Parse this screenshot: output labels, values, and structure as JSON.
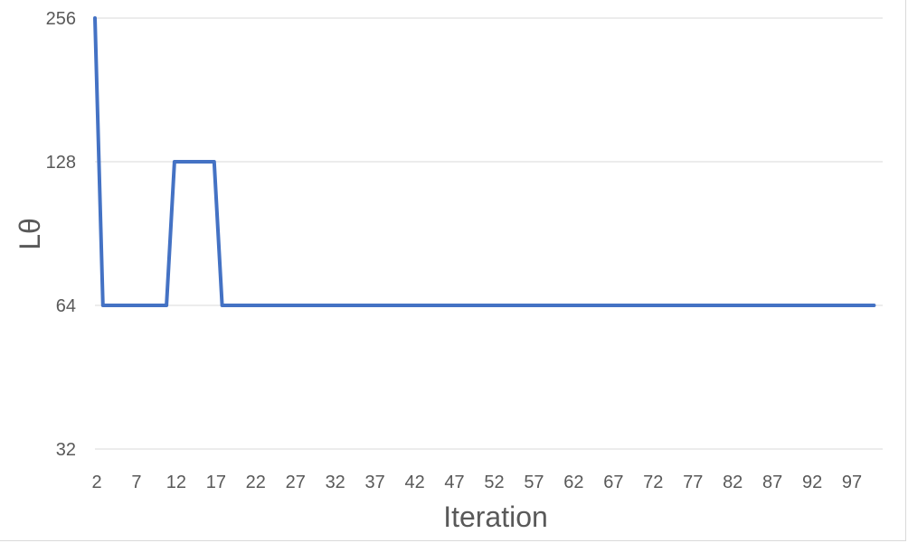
{
  "chart_data": {
    "type": "line",
    "title": "",
    "xlabel": "Iteration",
    "ylabel": "Lθ",
    "yscale": "log2",
    "ylim": [
      32,
      256
    ],
    "yticks": [
      32,
      64,
      128,
      256
    ],
    "xticks": [
      2,
      7,
      12,
      17,
      22,
      27,
      32,
      37,
      42,
      47,
      52,
      57,
      62,
      67,
      72,
      77,
      82,
      87,
      92,
      97
    ],
    "xlim": [
      2,
      100
    ],
    "grid": true,
    "legend": "none",
    "colors": {
      "series": "#4472c4",
      "grid": "#d9d9d9",
      "text": "#595959"
    },
    "series": [
      {
        "x": [
          2,
          3,
          4,
          5,
          6,
          7,
          8,
          9,
          10,
          11,
          12,
          13,
          14,
          15,
          16,
          17,
          18,
          19,
          20,
          100
        ],
        "values": [
          256,
          64,
          64,
          64,
          64,
          64,
          64,
          64,
          64,
          64,
          128,
          128,
          128,
          128,
          128,
          128,
          64,
          64,
          64,
          64
        ]
      }
    ]
  }
}
